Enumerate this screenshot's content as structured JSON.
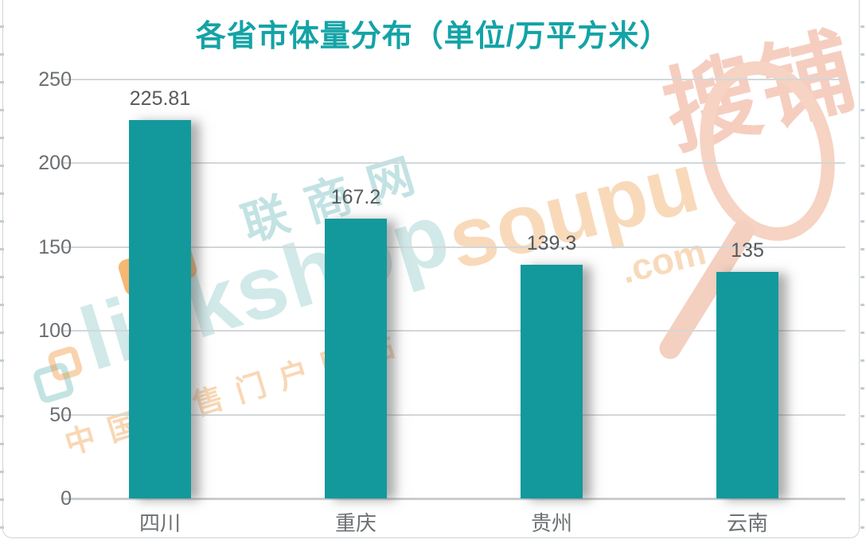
{
  "chart_data": {
    "type": "bar",
    "title": "各省市体量分布（单位/万平方米）",
    "categories": [
      "四川",
      "重庆",
      "贵州",
      "云南"
    ],
    "values": [
      225.81,
      167.2,
      139.3,
      135
    ],
    "value_labels": [
      "225.81",
      "167.2",
      "139.3",
      "135"
    ],
    "ylim": [
      0,
      250
    ],
    "yticks": [
      0,
      50,
      100,
      150,
      200,
      250
    ],
    "xlabel": "",
    "ylabel": "",
    "grid": "horizontal",
    "legend": "none",
    "bar_color": "#13999c",
    "title_color": "#14a3a6"
  },
  "watermarks": {
    "linkshop": {
      "brand": "linkshop",
      "com": ".com",
      "cn": "联商网",
      "tagline": "中国零售门户网站",
      "icon": "interlocked-squares-icon"
    },
    "soupu": {
      "brand": "soupu",
      "com": ".com",
      "cn": "搜铺",
      "icon": "magnifier-icon"
    }
  }
}
